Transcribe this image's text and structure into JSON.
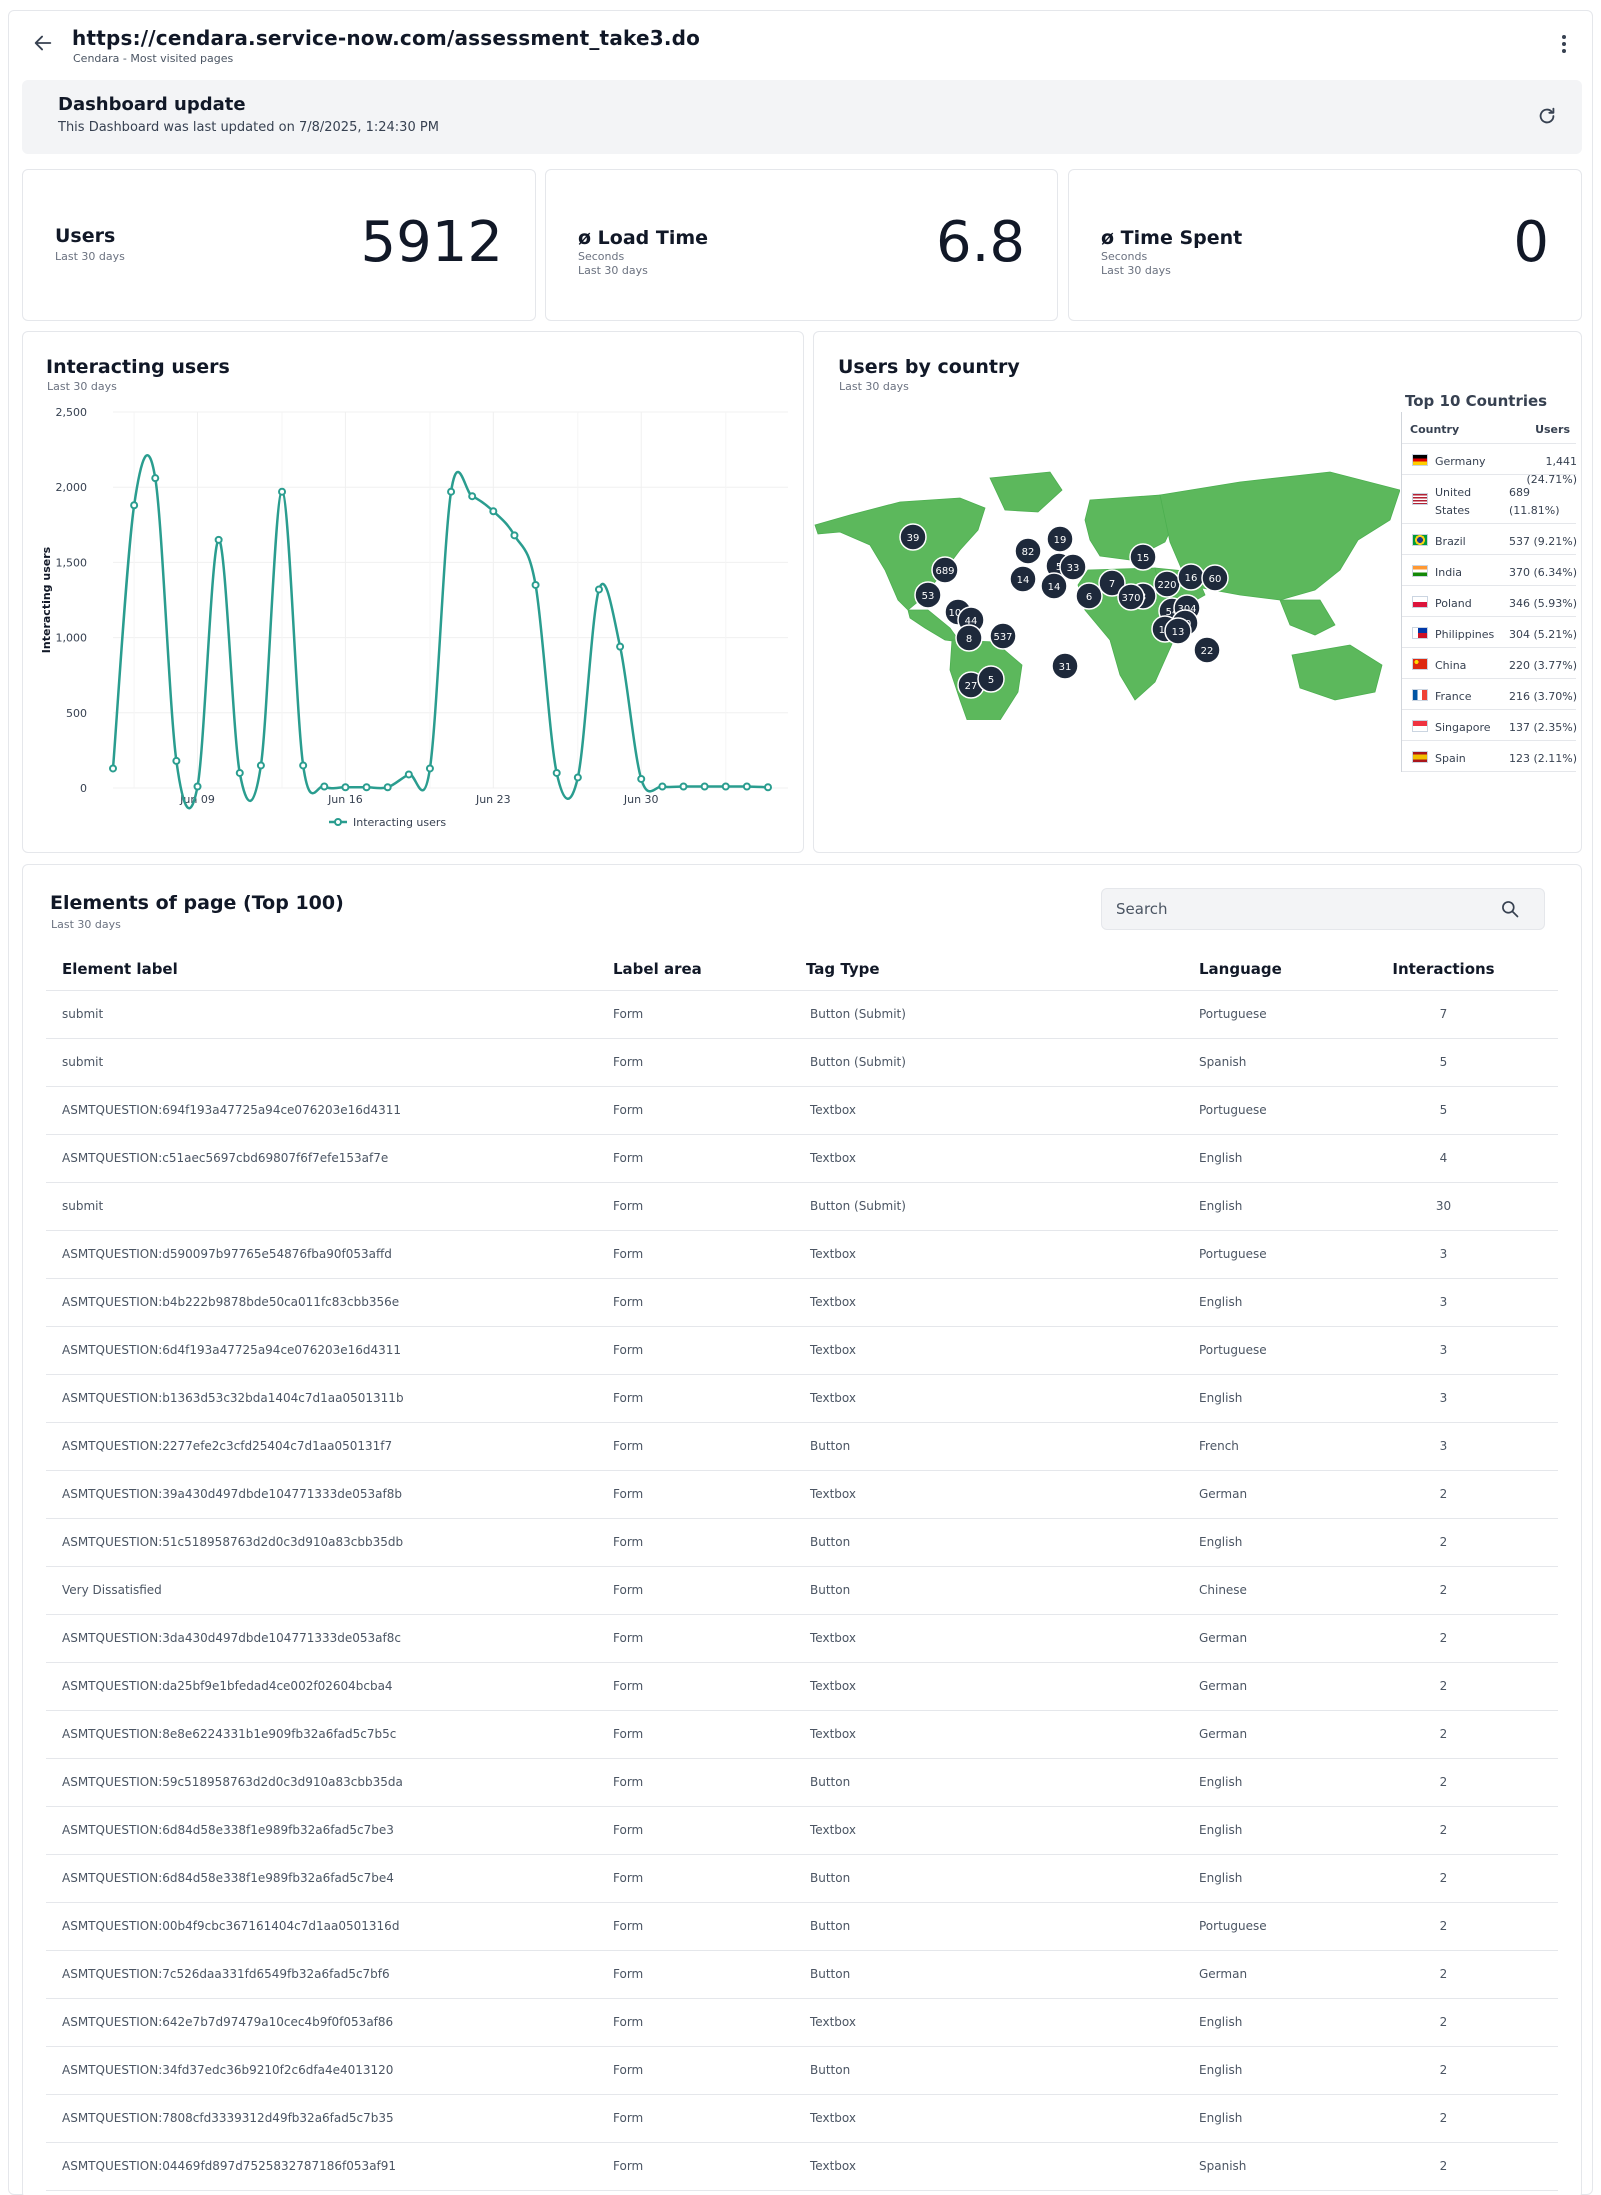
{
  "header": {
    "url": "https://cendara.service-now.com/assessment_take3.do",
    "subtitle": "Cendara - Most visited pages"
  },
  "update": {
    "title": "Dashboard update",
    "text": "This Dashboard was last updated on 7/8/2025, 1:24:30 PM"
  },
  "kpis": [
    {
      "title": "Users",
      "sub1": "Last 30 days",
      "sub2": "",
      "value": "5912"
    },
    {
      "title": "ø Load Time",
      "sub1": "Seconds",
      "sub2": "Last 30 days",
      "value": "6.8"
    },
    {
      "title": "ø Time Spent",
      "sub1": "Seconds",
      "sub2": "Last 30 days",
      "value": "0"
    }
  ],
  "interacting": {
    "title": "Interacting users",
    "sub": "Last 30 days"
  },
  "chart_data": {
    "type": "line",
    "ylabel": "Interacting users",
    "ylim": [
      0,
      2500
    ],
    "yticks": [
      "0",
      "500",
      "1,000",
      "1,500",
      "2,000",
      "2,500"
    ],
    "xticks": [
      {
        "label": "Jun 09",
        "at": 4
      },
      {
        "label": "Jun 16",
        "at": 11
      },
      {
        "label": "Jun 23",
        "at": 18
      },
      {
        "label": "Jun 30",
        "at": 25
      }
    ],
    "x_start": "Jun 05",
    "legend": "Interacting users",
    "color": "#2a9d8f",
    "series": [
      {
        "name": "Interacting users",
        "values": [
          130,
          1880,
          2060,
          180,
          10,
          1650,
          100,
          150,
          1970,
          150,
          10,
          5,
          5,
          5,
          90,
          130,
          1970,
          1940,
          1840,
          1680,
          1350,
          100,
          70,
          1320,
          940,
          60,
          10,
          10,
          10,
          10,
          10,
          5
        ]
      }
    ]
  },
  "country": {
    "title": "Users by country",
    "sub": "Last 30 days",
    "map_color": "#5cb85c",
    "marker_color": "#1e293b",
    "markers": [
      "39",
      "82",
      "19",
      "14",
      "689",
      "15",
      "5",
      "33",
      "53",
      "14",
      "7",
      "220",
      "16",
      "60",
      "6",
      "3",
      "370",
      "54",
      "304",
      "108",
      "44",
      "10",
      "13",
      "13",
      "537",
      "8",
      "22",
      "31",
      "27",
      "5"
    ],
    "top10_title": "Top 10 Countries",
    "col_country": "Country",
    "col_users": "Users",
    "top10": [
      {
        "name": "Germany",
        "users": "1,441 (24.71%)",
        "flag": "de"
      },
      {
        "name": "United States",
        "users": "689 (11.81%)",
        "flag": "us"
      },
      {
        "name": "Brazil",
        "users": "537 (9.21%)",
        "flag": "br"
      },
      {
        "name": "India",
        "users": "370 (6.34%)",
        "flag": "in"
      },
      {
        "name": "Poland",
        "users": "346 (5.93%)",
        "flag": "pl"
      },
      {
        "name": "Philippines",
        "users": "304 (5.21%)",
        "flag": "ph"
      },
      {
        "name": "China",
        "users": "220 (3.77%)",
        "flag": "cn"
      },
      {
        "name": "France",
        "users": "216 (3.70%)",
        "flag": "fr"
      },
      {
        "name": "Singapore",
        "users": "137 (2.35%)",
        "flag": "sg"
      },
      {
        "name": "Spain",
        "users": "123 (2.11%)",
        "flag": "es"
      }
    ]
  },
  "elements": {
    "title": "Elements of page (Top 100)",
    "sub": "Last 30 days",
    "search_placeholder": "Search",
    "columns": [
      "Element label",
      "Label area",
      "Tag Type",
      "Language",
      "Interactions"
    ],
    "rows": [
      [
        "submit",
        "Form",
        "Button (Submit)",
        "Portuguese",
        "7"
      ],
      [
        "submit",
        "Form",
        "Button (Submit)",
        "Spanish",
        "5"
      ],
      [
        "ASMTQUESTION:694f193a47725a94ce076203e16d4311",
        "Form",
        "Textbox",
        "Portuguese",
        "5"
      ],
      [
        "ASMTQUESTION:c51aec5697cbd69807f6f7efe153af7e",
        "Form",
        "Textbox",
        "English",
        "4"
      ],
      [
        "submit",
        "Form",
        "Button (Submit)",
        "English",
        "30"
      ],
      [
        "ASMTQUESTION:d590097b97765e54876fba90f053affd",
        "Form",
        "Textbox",
        "Portuguese",
        "3"
      ],
      [
        "ASMTQUESTION:b4b222b9878bde50ca011fc83cbb356e",
        "Form",
        "Textbox",
        "English",
        "3"
      ],
      [
        "ASMTQUESTION:6d4f193a47725a94ce076203e16d4311",
        "Form",
        "Textbox",
        "Portuguese",
        "3"
      ],
      [
        "ASMTQUESTION:b1363d53c32bda1404c7d1aa0501311b",
        "Form",
        "Textbox",
        "English",
        "3"
      ],
      [
        "ASMTQUESTION:2277efe2c3cfd25404c7d1aa050131f7",
        "Form",
        "Button",
        "French",
        "3"
      ],
      [
        "ASMTQUESTION:39a430d497dbde104771333de053af8b",
        "Form",
        "Textbox",
        "German",
        "2"
      ],
      [
        "ASMTQUESTION:51c518958763d2d0c3d910a83cbb35db",
        "Form",
        "Button",
        "English",
        "2"
      ],
      [
        "Very Dissatisfied",
        "Form",
        "Button",
        "Chinese",
        "2"
      ],
      [
        "ASMTQUESTION:3da430d497dbde104771333de053af8c",
        "Form",
        "Textbox",
        "German",
        "2"
      ],
      [
        "ASMTQUESTION:da25bf9e1bfedad4ce002f02604bcba4",
        "Form",
        "Textbox",
        "German",
        "2"
      ],
      [
        "ASMTQUESTION:8e8e6224331b1e909fb32a6fad5c7b5c",
        "Form",
        "Textbox",
        "German",
        "2"
      ],
      [
        "ASMTQUESTION:59c518958763d2d0c3d910a83cbb35da",
        "Form",
        "Button",
        "English",
        "2"
      ],
      [
        "ASMTQUESTION:6d84d58e338f1e989fb32a6fad5c7be3",
        "Form",
        "Textbox",
        "English",
        "2"
      ],
      [
        "ASMTQUESTION:6d84d58e338f1e989fb32a6fad5c7be4",
        "Form",
        "Button",
        "English",
        "2"
      ],
      [
        "ASMTQUESTION:00b4f9cbc367161404c7d1aa0501316d",
        "Form",
        "Button",
        "Portuguese",
        "2"
      ],
      [
        "ASMTQUESTION:7c526daa331fd6549fb32a6fad5c7bf6",
        "Form",
        "Button",
        "German",
        "2"
      ],
      [
        "ASMTQUESTION:642e7b7d97479a10cec4b9f0f053af86",
        "Form",
        "Textbox",
        "English",
        "2"
      ],
      [
        "ASMTQUESTION:34fd37edc36b9210f2c6dfa4e4013120",
        "Form",
        "Button",
        "English",
        "2"
      ],
      [
        "ASMTQUESTION:7808cfd3339312d49fb32a6fad5c7b35",
        "Form",
        "Textbox",
        "English",
        "2"
      ],
      [
        "ASMTQUESTION:04469fd897d7525832787186f053af91",
        "Form",
        "Textbox",
        "Spanish",
        "2"
      ]
    ]
  }
}
